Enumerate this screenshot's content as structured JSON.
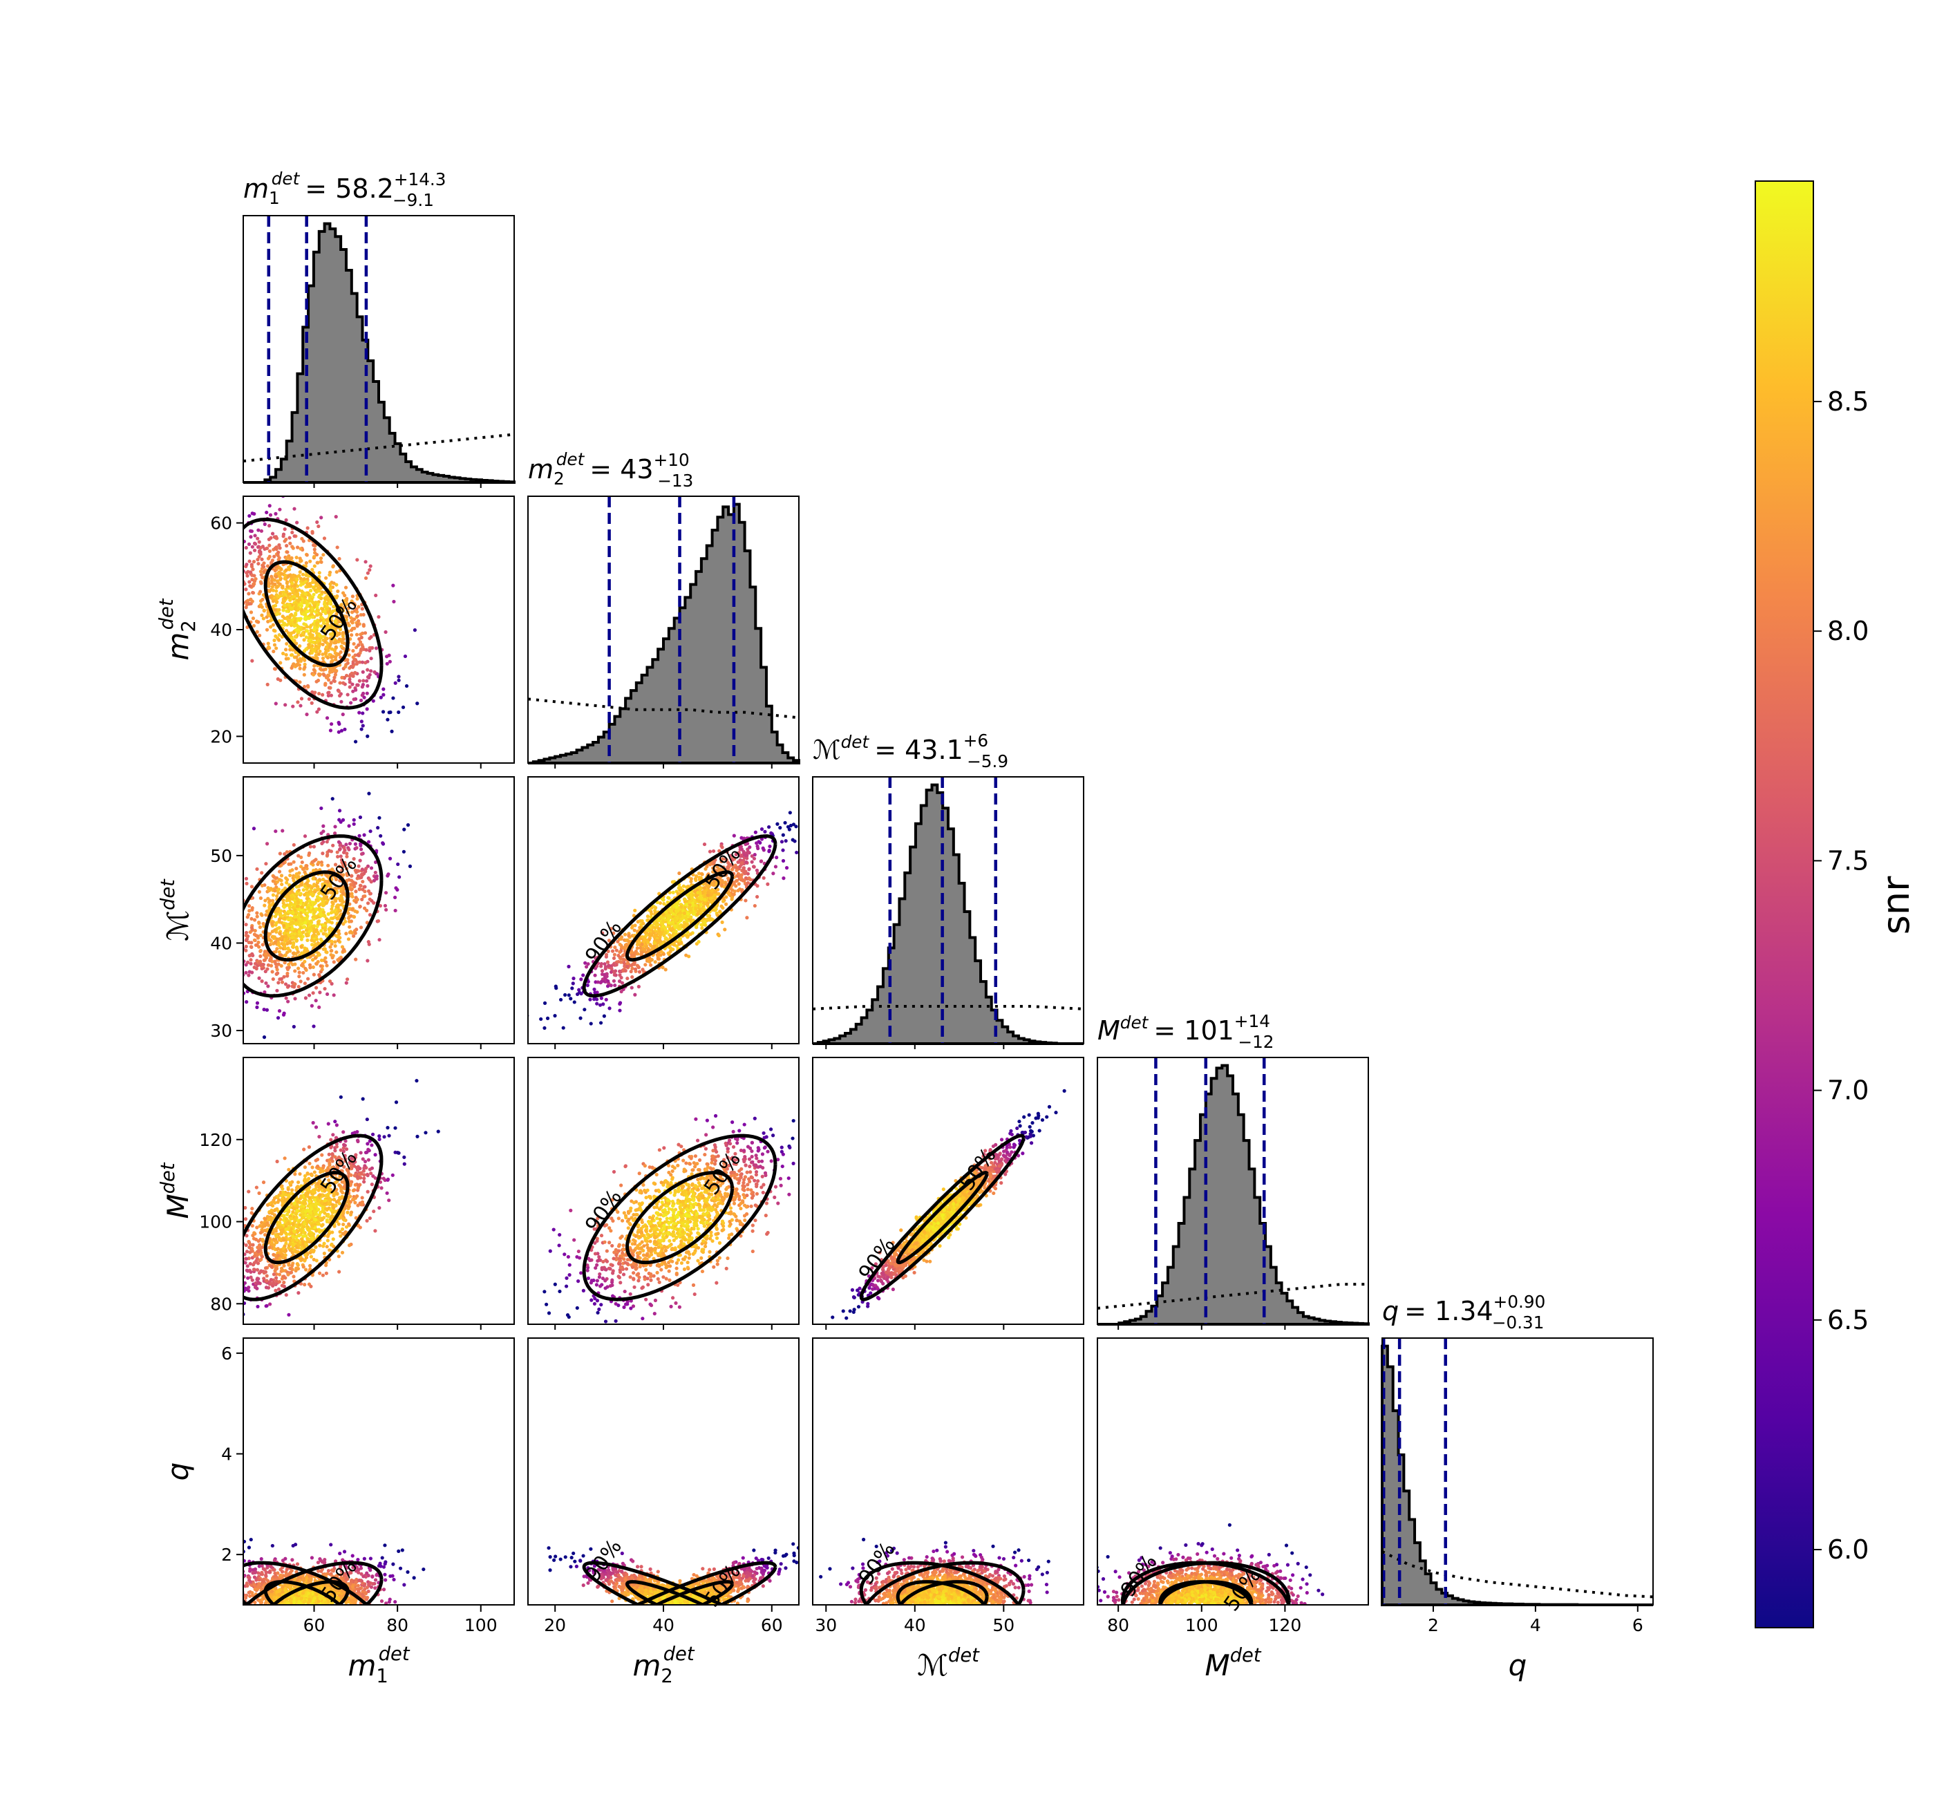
{
  "figure": {
    "colorbar": {
      "label": "snr",
      "ticks": [
        6.0,
        6.5,
        7.0,
        7.5,
        8.0,
        8.5
      ],
      "range": [
        5.83,
        8.98
      ],
      "colormap": "plasma"
    },
    "colors": {
      "histogram_fill": "#808080",
      "quantile_lines": "#00008b",
      "outline": "#000000"
    },
    "contour_levels": [
      "50%",
      "90%"
    ]
  },
  "chart_data": {
    "type": "corner",
    "parameters": [
      {
        "key": "m1",
        "symbol": "m",
        "sub": "1",
        "sup": "det",
        "title": {
          "value": "58.2",
          "plus": "+14.3",
          "minus": "−9.1"
        },
        "median": 58.2,
        "lower": 49.1,
        "upper": 72.5,
        "range": [
          43,
          108
        ],
        "ticks": [
          60,
          80,
          100
        ]
      },
      {
        "key": "m2",
        "symbol": "m",
        "sub": "2",
        "sup": "det",
        "title": {
          "value": "43",
          "plus": "+10",
          "minus": "−13"
        },
        "median": 43,
        "lower": 30,
        "upper": 53,
        "range": [
          15,
          65
        ],
        "ticks": [
          20,
          40,
          60
        ]
      },
      {
        "key": "Mc",
        "symbol": "ℳ",
        "sub": "",
        "sup": "det",
        "title": {
          "value": "43.1",
          "plus": "+6",
          "minus": "−5.9"
        },
        "median": 43.1,
        "lower": 37.2,
        "upper": 49.1,
        "range": [
          28.5,
          59
        ],
        "ticks": [
          30,
          40,
          50
        ]
      },
      {
        "key": "M",
        "symbol": "M",
        "sub": "",
        "sup": "det",
        "title": {
          "value": "101",
          "plus": "+14",
          "minus": "−12"
        },
        "median": 101,
        "lower": 89,
        "upper": 115,
        "range": [
          75,
          140
        ],
        "ticks": [
          80,
          100,
          120
        ]
      },
      {
        "key": "q",
        "symbol": "q",
        "sub": "",
        "sup": "",
        "title": {
          "value": "1.34",
          "plus": "+0.90",
          "minus": "−0.31"
        },
        "median": 1.34,
        "lower": 1.03,
        "upper": 2.24,
        "range": [
          1,
          6.3
        ],
        "ticks": [
          2,
          4,
          6
        ]
      }
    ],
    "histograms": [
      {
        "param": "m1",
        "hist": [
          0,
          0,
          0,
          0,
          0.01,
          0.02,
          0.05,
          0.09,
          0.16,
          0.27,
          0.42,
          0.6,
          0.76,
          0.89,
          0.97,
          1.0,
          0.98,
          0.95,
          0.9,
          0.82,
          0.73,
          0.64,
          0.55,
          0.47,
          0.39,
          0.31,
          0.25,
          0.19,
          0.15,
          0.11,
          0.08,
          0.06,
          0.05,
          0.04,
          0.035,
          0.03,
          0.027,
          0.024,
          0.02,
          0.018,
          0.015,
          0.013,
          0.011,
          0.01,
          0.008,
          0.007,
          0.005,
          0.004,
          0.003,
          0.002
        ],
        "prior": [
          0.08,
          0.09,
          0.1,
          0.11,
          0.12,
          0.13,
          0.14,
          0.15,
          0.16,
          0.17,
          0.18
        ]
      },
      {
        "param": "m2",
        "hist": [
          0.0,
          0.005,
          0.01,
          0.015,
          0.02,
          0.025,
          0.03,
          0.035,
          0.04,
          0.05,
          0.06,
          0.07,
          0.08,
          0.1,
          0.12,
          0.15,
          0.18,
          0.21,
          0.25,
          0.28,
          0.31,
          0.34,
          0.37,
          0.4,
          0.44,
          0.48,
          0.52,
          0.56,
          0.6,
          0.64,
          0.69,
          0.74,
          0.79,
          0.84,
          0.9,
          0.95,
          0.99,
          0.96,
          1.0,
          0.93,
          0.82,
          0.68,
          0.52,
          0.37,
          0.22,
          0.12,
          0.07,
          0.04,
          0.02,
          0.01
        ],
        "prior": [
          0.24,
          0.23,
          0.22,
          0.21,
          0.2,
          0.2,
          0.2,
          0.19,
          0.19,
          0.18,
          0.17
        ]
      },
      {
        "param": "Mc",
        "hist": [
          0.0,
          0.005,
          0.01,
          0.015,
          0.02,
          0.03,
          0.04,
          0.055,
          0.075,
          0.1,
          0.13,
          0.17,
          0.22,
          0.29,
          0.37,
          0.46,
          0.56,
          0.66,
          0.76,
          0.85,
          0.92,
          0.98,
          1.0,
          0.97,
          0.91,
          0.83,
          0.73,
          0.62,
          0.51,
          0.41,
          0.32,
          0.24,
          0.18,
          0.13,
          0.09,
          0.065,
          0.045,
          0.03,
          0.02,
          0.015,
          0.01,
          0.007,
          0.005,
          0.003,
          0.002,
          0.0,
          0.0,
          0.0,
          0.0,
          0.0
        ],
        "prior": [
          0.13,
          0.135,
          0.14,
          0.14,
          0.14,
          0.14,
          0.14,
          0.14,
          0.14,
          0.135,
          0.13
        ]
      },
      {
        "param": "M",
        "hist": [
          0,
          0,
          0,
          0,
          0.005,
          0.01,
          0.015,
          0.02,
          0.03,
          0.05,
          0.07,
          0.11,
          0.16,
          0.22,
          0.3,
          0.39,
          0.49,
          0.6,
          0.71,
          0.81,
          0.89,
          0.95,
          0.99,
          1.0,
          0.96,
          0.89,
          0.81,
          0.71,
          0.6,
          0.49,
          0.39,
          0.3,
          0.22,
          0.16,
          0.12,
          0.09,
          0.065,
          0.045,
          0.03,
          0.025,
          0.02,
          0.015,
          0.012,
          0.01,
          0.008,
          0.006,
          0.005,
          0.004,
          0.003,
          0.002
        ],
        "prior": [
          0.06,
          0.07,
          0.08,
          0.09,
          0.1,
          0.11,
          0.12,
          0.13,
          0.14,
          0.15,
          0.15
        ]
      },
      {
        "param": "q",
        "hist": [
          1.0,
          0.92,
          0.75,
          0.58,
          0.44,
          0.33,
          0.24,
          0.17,
          0.12,
          0.085,
          0.06,
          0.045,
          0.035,
          0.025,
          0.02,
          0.015,
          0.012,
          0.01,
          0.008,
          0.007,
          0.006,
          0.005,
          0.004,
          0.004,
          0.003,
          0.003,
          0.002,
          0.002,
          0.002,
          0.001,
          0.001,
          0.001,
          0.001,
          0.001,
          0.001,
          0.001,
          0.0,
          0.0,
          0.0,
          0.0,
          0.0,
          0.0,
          0.0,
          0.0,
          0.0,
          0.0,
          0.0,
          0.0,
          0.0,
          0.0
        ],
        "prior": [
          0.2,
          0.15,
          0.12,
          0.1,
          0.085,
          0.075,
          0.065,
          0.055,
          0.045,
          0.035,
          0.03
        ]
      }
    ],
    "correlations": [
      {
        "x": "m2",
        "y": "m1",
        "rho": -0.55
      },
      {
        "x": "Mc",
        "y": "m1",
        "rho": 0.45
      },
      {
        "x": "Mc",
        "y": "m2",
        "rho": 0.9
      },
      {
        "x": "M",
        "y": "m1",
        "rho": 0.7
      },
      {
        "x": "M",
        "y": "m2",
        "rho": 0.65
      },
      {
        "x": "M",
        "y": "Mc",
        "rho": 0.97
      },
      {
        "x": "q",
        "y": "m1",
        "rho": 0.6
      },
      {
        "x": "q",
        "y": "m2",
        "rho": -0.9
      },
      {
        "x": "q",
        "y": "Mc",
        "rho": -0.35
      },
      {
        "x": "q",
        "y": "M",
        "rho": 0.1
      }
    ]
  }
}
